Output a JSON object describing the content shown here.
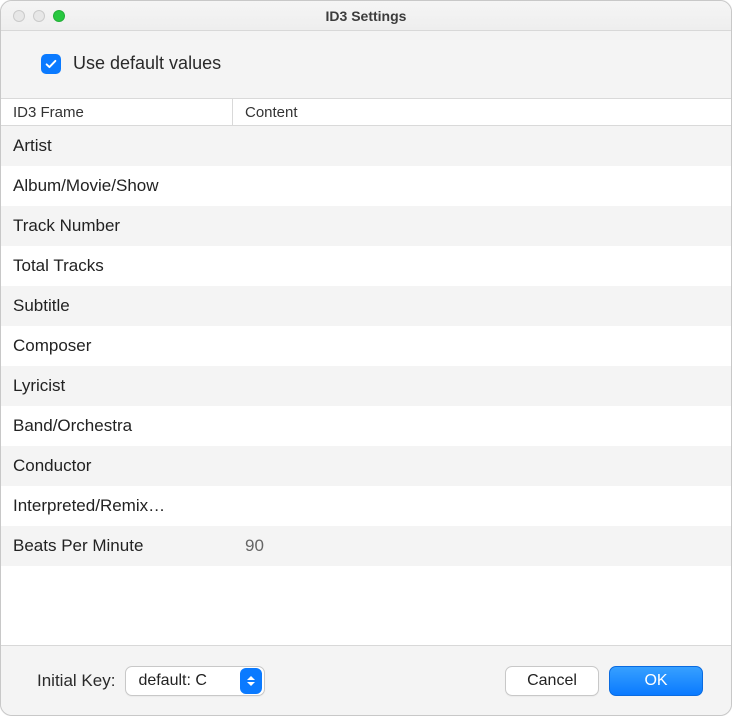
{
  "window": {
    "title": "ID3 Settings"
  },
  "checkbox": {
    "label": "Use default values",
    "checked": true
  },
  "table": {
    "columns": {
      "frame": "ID3 Frame",
      "content": "Content"
    },
    "rows": [
      {
        "frame": "Artist",
        "content": ""
      },
      {
        "frame": "Album/Movie/Show",
        "content": ""
      },
      {
        "frame": "Track Number",
        "content": ""
      },
      {
        "frame": "Total Tracks",
        "content": ""
      },
      {
        "frame": "Subtitle",
        "content": ""
      },
      {
        "frame": "Composer",
        "content": ""
      },
      {
        "frame": "Lyricist",
        "content": ""
      },
      {
        "frame": "Band/Orchestra",
        "content": ""
      },
      {
        "frame": "Conductor",
        "content": ""
      },
      {
        "frame": "Interpreted/Remix…",
        "content": ""
      },
      {
        "frame": "Beats Per Minute",
        "content": "90"
      }
    ]
  },
  "initialKey": {
    "label": "Initial Key:",
    "value": "default: C"
  },
  "buttons": {
    "cancel": "Cancel",
    "ok": "OK"
  },
  "colors": {
    "accent": "#0a7aff",
    "stripe_odd": "#f4f4f4",
    "stripe_even": "#ffffff",
    "border": "#d9d9d9"
  }
}
